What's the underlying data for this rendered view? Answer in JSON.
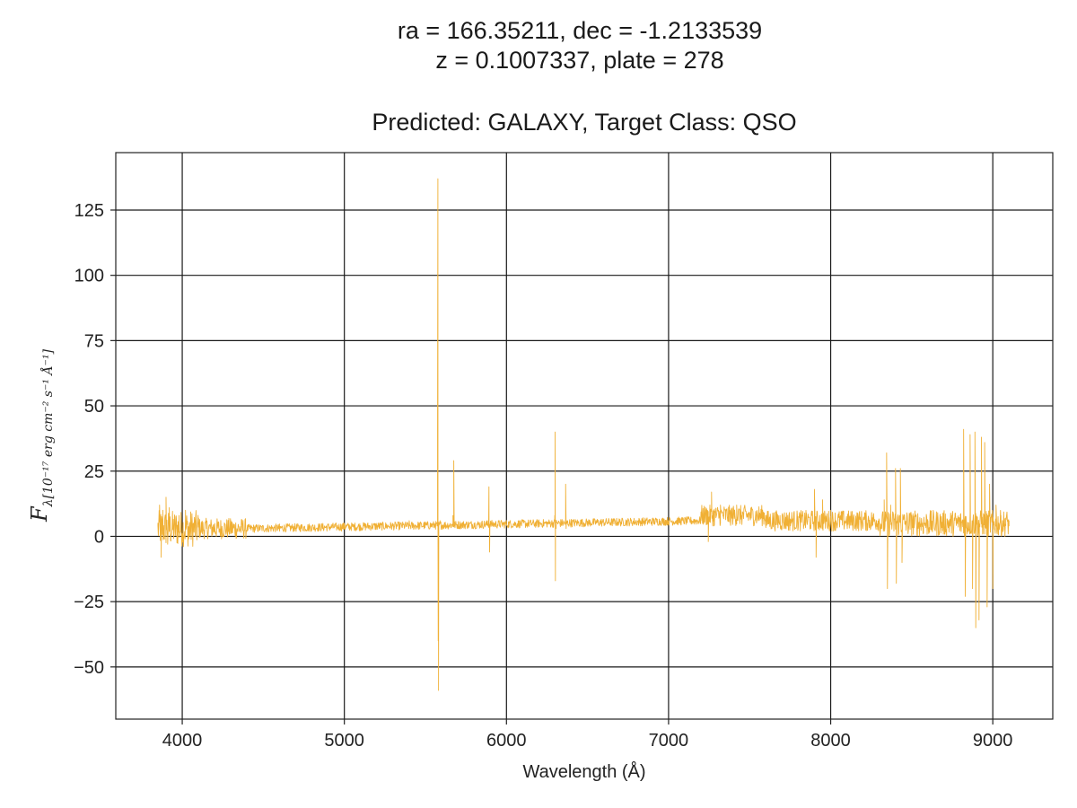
{
  "chart_data": {
    "type": "line",
    "title_lines": [
      "ra = 166.35211, dec = -1.2133539",
      "z = 0.1007337, plate = 278"
    ],
    "subtitle": "Predicted: GALAXY, Target Class: QSO",
    "xlabel": "Wavelength (Å)",
    "ylabel": "Fλ[10⁻¹⁷ erg cm⁻² s⁻¹ Å⁻¹]",
    "xlim": [
      3590,
      9370
    ],
    "ylim": [
      -70,
      147
    ],
    "xticks": [
      4000,
      5000,
      6000,
      7000,
      8000,
      9000
    ],
    "yticks": [
      -50,
      -25,
      0,
      25,
      50,
      75,
      100,
      125
    ],
    "grid": true,
    "legend": "none",
    "series": [
      {
        "color": "#f0b035",
        "x_range": [
          3850,
          9100
        ],
        "points": [
          [
            3850,
            4
          ],
          [
            3860,
            12
          ],
          [
            3870,
            -8
          ],
          [
            3880,
            10
          ],
          [
            3890,
            2
          ],
          [
            3900,
            15
          ],
          [
            3910,
            -3
          ],
          [
            3920,
            11
          ],
          [
            3930,
            0
          ],
          [
            3940,
            9
          ],
          [
            3960,
            3
          ],
          [
            3980,
            8
          ],
          [
            4000,
            1
          ],
          [
            4020,
            10
          ],
          [
            4040,
            -1
          ],
          [
            4060,
            8
          ],
          [
            4080,
            2
          ],
          [
            4100,
            7
          ],
          [
            4150,
            3
          ],
          [
            4200,
            5
          ],
          [
            4250,
            1
          ],
          [
            4300,
            6
          ],
          [
            4400,
            3
          ],
          [
            4500,
            4
          ],
          [
            4600,
            2
          ],
          [
            4800,
            4
          ],
          [
            5000,
            5
          ],
          [
            5200,
            5
          ],
          [
            5400,
            6
          ],
          [
            5560,
            5
          ],
          [
            5575,
            40
          ],
          [
            5577,
            137
          ],
          [
            5579,
            -40
          ],
          [
            5581,
            -59
          ],
          [
            5590,
            6
          ],
          [
            5670,
            8
          ],
          [
            5675,
            29
          ],
          [
            5680,
            4
          ],
          [
            5800,
            5
          ],
          [
            5888,
            6
          ],
          [
            5892,
            19
          ],
          [
            5896,
            -6
          ],
          [
            5900,
            5
          ],
          [
            6000,
            5
          ],
          [
            6298,
            8
          ],
          [
            6300,
            40
          ],
          [
            6302,
            -17
          ],
          [
            6306,
            3
          ],
          [
            6363,
            5
          ],
          [
            6365,
            20
          ],
          [
            6368,
            3
          ],
          [
            6500,
            5
          ],
          [
            6800,
            5
          ],
          [
            7000,
            6
          ],
          [
            7200,
            6
          ],
          [
            7240,
            10
          ],
          [
            7245,
            -2
          ],
          [
            7265,
            17
          ],
          [
            7280,
            4
          ],
          [
            7320,
            12
          ],
          [
            7380,
            6
          ],
          [
            7420,
            12
          ],
          [
            7450,
            8
          ],
          [
            7500,
            9
          ],
          [
            7600,
            8
          ],
          [
            7700,
            8
          ],
          [
            7850,
            9
          ],
          [
            7900,
            18
          ],
          [
            7910,
            -8
          ],
          [
            7950,
            14
          ],
          [
            8000,
            10
          ],
          [
            8100,
            6
          ],
          [
            8200,
            6
          ],
          [
            8280,
            5
          ],
          [
            8330,
            14
          ],
          [
            8345,
            32
          ],
          [
            8350,
            -20
          ],
          [
            8370,
            12
          ],
          [
            8400,
            26
          ],
          [
            8405,
            -18
          ],
          [
            8430,
            26
          ],
          [
            8440,
            -10
          ],
          [
            8500,
            8
          ],
          [
            8600,
            6
          ],
          [
            8700,
            5
          ],
          [
            8770,
            8
          ],
          [
            8820,
            41
          ],
          [
            8830,
            -23
          ],
          [
            8860,
            39
          ],
          [
            8875,
            -20
          ],
          [
            8890,
            40
          ],
          [
            8895,
            -35
          ],
          [
            8915,
            -32
          ],
          [
            8930,
            38
          ],
          [
            8950,
            36
          ],
          [
            8965,
            -27
          ],
          [
            8980,
            20
          ],
          [
            9000,
            -20
          ],
          [
            9020,
            12
          ],
          [
            9050,
            8
          ],
          [
            9080,
            7
          ],
          [
            9100,
            6
          ]
        ]
      }
    ]
  }
}
